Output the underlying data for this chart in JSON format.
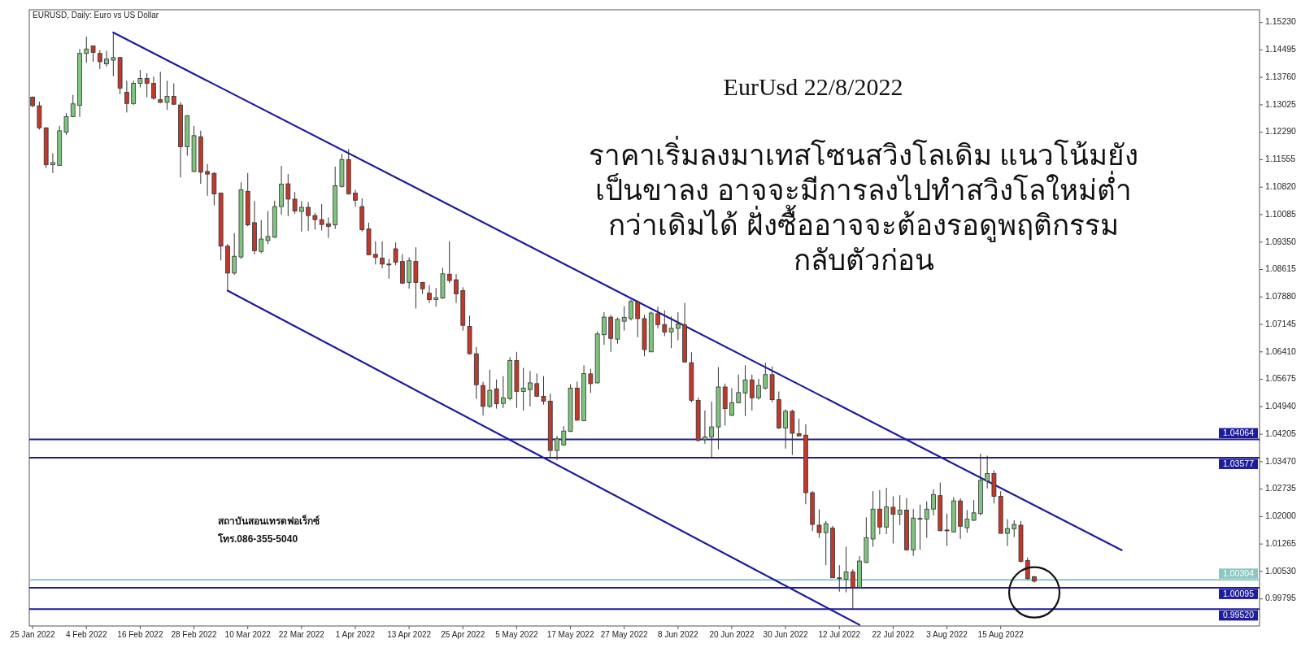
{
  "chart_data": {
    "type": "candlestick",
    "title": "EURUSD, Daily:  Euro vs US Dollar",
    "subtitle": "EurUsd 22/8/2022",
    "annotations": [
      "ราคาเริ่มลงมาเทสโซนสวิงโลเดิม  แนวโน้มยัง\nเป็นขาลง อาจจะมีการลงไปทำสวิงโลใหม่ต่ำ\nกว่าเดิมได้ ฝั่งซื้ออาจจะต้องรอดูพฤติกรรม\nกลับตัวก่อน",
      "สถาบันสอนเทรดฟอเร็กซ์",
      "โทร.086-355-5040"
    ],
    "categories": [
      "25 Jan 2022",
      null,
      null,
      null,
      null,
      null,
      null,
      null,
      "4 Feb 2022",
      null,
      null,
      null,
      null,
      null,
      null,
      null,
      "16 Feb 2022",
      null,
      null,
      null,
      null,
      null,
      null,
      null,
      "28 Feb 2022",
      null,
      null,
      null,
      null,
      null,
      null,
      null,
      "10 Mar 2022",
      null,
      null,
      null,
      null,
      null,
      null,
      null,
      "22 Mar 2022",
      null,
      null,
      null,
      null,
      null,
      null,
      null,
      "1 Apr 2022",
      null,
      null,
      null,
      null,
      null,
      null,
      null,
      "13 Apr 2022",
      null,
      null,
      null,
      null,
      null,
      null,
      null,
      "25 Apr 2022",
      null,
      null,
      null,
      null,
      null,
      null,
      null,
      "5 May 2022",
      null,
      null,
      null,
      null,
      null,
      null,
      null,
      "17 May 2022",
      null,
      null,
      null,
      null,
      null,
      null,
      null,
      "27 May 2022",
      null,
      null,
      null,
      null,
      null,
      null,
      null,
      "8 Jun 2022",
      null,
      null,
      null,
      null,
      null,
      null,
      null,
      "20 Jun 2022",
      null,
      null,
      null,
      null,
      null,
      null,
      null,
      "30 Jun 2022",
      null,
      null,
      null,
      null,
      null,
      null,
      null,
      "12 Jul 2022",
      null,
      null,
      null,
      null,
      null,
      null,
      null,
      "22 Jul 2022",
      null,
      null,
      null,
      null,
      null,
      null,
      null,
      "3 Aug 2022",
      null,
      null,
      null,
      null,
      null,
      null,
      null,
      "15 Aug 2022",
      null,
      null,
      null,
      null,
      null,
      null,
      null,
      null,
      null,
      null,
      null,
      null,
      null,
      null,
      null,
      null,
      null,
      null,
      null,
      null,
      null,
      null,
      null,
      null,
      null,
      null,
      null,
      null,
      null,
      null,
      null,
      null,
      null,
      null,
      null,
      null,
      null,
      null
    ],
    "ohlc": [
      [
        1.1323,
        1.1325,
        1.1296,
        1.13
      ],
      [
        1.13,
        1.1311,
        1.1236,
        1.1241
      ],
      [
        1.1241,
        1.1242,
        1.1133,
        1.1142
      ],
      [
        1.1142,
        1.1173,
        1.112,
        1.1148
      ],
      [
        1.114,
        1.1246,
        1.1139,
        1.1233
      ],
      [
        1.1229,
        1.128,
        1.1222,
        1.1271
      ],
      [
        1.1271,
        1.1329,
        1.127,
        1.1305
      ],
      [
        1.1301,
        1.1452,
        1.127,
        1.144
      ],
      [
        1.144,
        1.1485,
        1.1415,
        1.1452
      ],
      [
        1.146,
        1.1461,
        1.1418,
        1.1443
      ],
      [
        1.144,
        1.1449,
        1.1398,
        1.1418
      ],
      [
        1.1412,
        1.1447,
        1.1405,
        1.1425
      ],
      [
        1.1422,
        1.1496,
        1.1379,
        1.1429
      ],
      [
        1.1429,
        1.1431,
        1.1331,
        1.1347
      ],
      [
        1.1336,
        1.1367,
        1.1282,
        1.1306
      ],
      [
        1.1306,
        1.1367,
        1.1302,
        1.136
      ],
      [
        1.136,
        1.1396,
        1.1349,
        1.1373
      ],
      [
        1.1373,
        1.1387,
        1.1323,
        1.136
      ],
      [
        1.136,
        1.1378,
        1.1316,
        1.132
      ],
      [
        1.1316,
        1.1391,
        1.1307,
        1.1309
      ],
      [
        1.1309,
        1.1367,
        1.1289,
        1.1325
      ],
      [
        1.1325,
        1.136,
        1.1302,
        1.1304
      ],
      [
        1.1302,
        1.1309,
        1.1108,
        1.119
      ],
      [
        1.119,
        1.1275,
        1.1166,
        1.1273
      ],
      [
        1.1124,
        1.1246,
        1.1122,
        1.122
      ],
      [
        1.1217,
        1.1233,
        1.1091,
        1.1122
      ],
      [
        1.1124,
        1.1144,
        1.1059,
        1.1117
      ],
      [
        1.1119,
        1.1122,
        1.1033,
        1.1064
      ],
      [
        1.1066,
        1.1068,
        1.0886,
        1.0924
      ],
      [
        1.0924,
        1.093,
        1.0805,
        1.0852
      ],
      [
        1.0852,
        1.0959,
        1.0847,
        1.0897
      ],
      [
        1.0895,
        1.1095,
        1.089,
        1.1075
      ],
      [
        1.1071,
        1.112,
        1.0977,
        1.0981
      ],
      [
        1.0987,
        1.1045,
        1.0902,
        1.0912
      ],
      [
        1.091,
        1.0994,
        1.0905,
        1.0943
      ],
      [
        1.0939,
        1.1018,
        1.0929,
        1.095
      ],
      [
        1.0948,
        1.1046,
        1.0946,
        1.103
      ],
      [
        1.103,
        1.1139,
        1.1008,
        1.109
      ],
      [
        1.1091,
        1.1117,
        1.1004,
        1.105
      ],
      [
        1.105,
        1.1069,
        1.1011,
        1.1018
      ],
      [
        1.1017,
        1.1045,
        1.0963,
        1.1028
      ],
      [
        1.1028,
        1.1042,
        1.0965,
        1.1006
      ],
      [
        1.1006,
        1.1013,
        1.0968,
        1.0995
      ],
      [
        1.0995,
        1.1037,
        1.0966,
        1.0982
      ],
      [
        1.0984,
        1.1001,
        1.0946,
        1.0977
      ],
      [
        1.0981,
        1.1137,
        1.097,
        1.1086
      ],
      [
        1.1084,
        1.1171,
        1.1081,
        1.1156
      ],
      [
        1.1156,
        1.1184,
        1.1062,
        1.1064
      ],
      [
        1.1066,
        1.1075,
        1.103,
        1.1047
      ],
      [
        1.103,
        1.1052,
        1.0963,
        1.0968
      ],
      [
        1.097,
        1.0987,
        1.09,
        1.0901
      ],
      [
        1.0902,
        1.0937,
        1.0875,
        1.0894
      ],
      [
        1.0892,
        1.0937,
        1.0865,
        1.0876
      ],
      [
        1.0876,
        1.089,
        1.0837,
        1.0874
      ],
      [
        1.0917,
        1.0934,
        1.0873,
        1.0881
      ],
      [
        1.0883,
        1.0902,
        1.0823,
        1.0825
      ],
      [
        1.0827,
        1.0894,
        1.081,
        1.0885
      ],
      [
        1.0883,
        1.0921,
        1.0757,
        1.0827
      ],
      [
        1.0827,
        1.0828,
        1.0796,
        1.081
      ],
      [
        1.0798,
        1.082,
        1.0772,
        1.0781
      ],
      [
        1.0781,
        1.0812,
        1.0762,
        1.0786
      ],
      [
        1.0785,
        1.0866,
        1.0783,
        1.085
      ],
      [
        1.0849,
        1.0937,
        1.0825,
        1.0832
      ],
      [
        1.0834,
        1.0849,
        1.0772,
        1.0796
      ],
      [
        1.0805,
        1.0814,
        1.0698,
        1.0712
      ],
      [
        1.0709,
        1.0738,
        1.0634,
        1.0636
      ],
      [
        1.0636,
        1.0654,
        1.0515,
        1.0553
      ],
      [
        1.0551,
        1.0561,
        1.0471,
        1.0495
      ],
      [
        1.0495,
        1.0593,
        1.0491,
        1.0538
      ],
      [
        1.0542,
        1.0567,
        1.0489,
        1.0502
      ],
      [
        1.0503,
        1.0576,
        1.0491,
        1.0518
      ],
      [
        1.0516,
        1.0627,
        1.0511,
        1.0618
      ],
      [
        1.0618,
        1.0641,
        1.0491,
        1.0535
      ],
      [
        1.0535,
        1.0598,
        1.0484,
        1.0544
      ],
      [
        1.054,
        1.059,
        1.0495,
        1.0558
      ],
      [
        1.0556,
        1.0583,
        1.052,
        1.0522
      ],
      [
        1.0522,
        1.0576,
        1.05,
        1.0509
      ],
      [
        1.0509,
        1.0529,
        1.0357,
        1.0377
      ],
      [
        1.0377,
        1.0416,
        1.0351,
        1.0408
      ],
      [
        1.0392,
        1.0442,
        1.0389,
        1.0429
      ],
      [
        1.0428,
        1.0554,
        1.0426,
        1.0544
      ],
      [
        1.0544,
        1.0561,
        1.0457,
        1.0458
      ],
      [
        1.0457,
        1.0605,
        1.0455,
        1.0583
      ],
      [
        1.0582,
        1.0596,
        1.0531,
        1.0556
      ],
      [
        1.0558,
        1.0696,
        1.0556,
        1.0689
      ],
      [
        1.0687,
        1.0747,
        1.066,
        1.0734
      ],
      [
        1.0734,
        1.074,
        1.0641,
        1.0677
      ],
      [
        1.0675,
        1.0733,
        1.0663,
        1.0728
      ],
      [
        1.0723,
        1.0763,
        1.0698,
        1.0733
      ],
      [
        1.073,
        1.0781,
        1.0725,
        1.0776
      ],
      [
        1.0774,
        1.0778,
        1.068,
        1.073
      ],
      [
        1.073,
        1.074,
        1.0629,
        1.0647
      ],
      [
        1.0641,
        1.0749,
        1.0641,
        1.0745
      ],
      [
        1.0743,
        1.0762,
        1.0704,
        1.0714
      ],
      [
        1.0714,
        1.0752,
        1.0683,
        1.0694
      ],
      [
        1.0694,
        1.0736,
        1.0651,
        1.0704
      ],
      [
        1.0704,
        1.0747,
        1.0672,
        1.0716
      ],
      [
        1.0714,
        1.0772,
        1.0612,
        1.0614
      ],
      [
        1.0612,
        1.064,
        1.0506,
        1.0511
      ],
      [
        1.0511,
        1.0518,
        1.04,
        1.0404
      ],
      [
        1.0406,
        1.0484,
        1.0395,
        1.0413
      ],
      [
        1.0413,
        1.0508,
        1.0357,
        1.044
      ],
      [
        1.044,
        1.06,
        1.038,
        1.0547
      ],
      [
        1.0547,
        1.0556,
        1.0444,
        1.0489
      ],
      [
        1.0471,
        1.0544,
        1.0469,
        1.0505
      ],
      [
        1.0505,
        1.058,
        1.0503,
        1.0532
      ],
      [
        1.0531,
        1.0605,
        1.0469,
        1.0566
      ],
      [
        1.0566,
        1.058,
        1.0484,
        1.0518
      ],
      [
        1.0518,
        1.0569,
        1.0513,
        1.0551
      ],
      [
        1.0544,
        1.0612,
        1.054,
        1.058
      ],
      [
        1.058,
        1.0602,
        1.0506,
        1.0513
      ],
      [
        1.0513,
        1.0535,
        1.0435,
        1.0437
      ],
      [
        1.0437,
        1.0487,
        1.0382,
        1.0482
      ],
      [
        1.0482,
        1.0486,
        1.0365,
        1.0423
      ],
      [
        1.0422,
        1.0462,
        1.0415,
        1.0416
      ],
      [
        1.0418,
        1.0447,
        1.0233,
        1.0264
      ],
      [
        1.0264,
        1.0268,
        1.0161,
        1.0179
      ],
      [
        1.0177,
        1.0219,
        1.0143,
        1.0157
      ],
      [
        1.0157,
        1.0188,
        1.007,
        1.0181
      ],
      [
        1.0169,
        1.0175,
        1.0036,
        1.0036
      ],
      [
        1.0036,
        1.007,
        0.9999,
        1.0034
      ],
      [
        1.0032,
        1.0119,
        0.9997,
        1.0052
      ],
      [
        1.0052,
        1.0059,
        0.9952,
        1.001
      ],
      [
        1.001,
        1.0094,
        1.0007,
        1.0081
      ],
      [
        1.0077,
        1.0198,
        1.0075,
        1.0143
      ],
      [
        1.014,
        1.0268,
        1.0119,
        1.022
      ],
      [
        1.022,
        1.0271,
        1.0152,
        1.0172
      ],
      [
        1.0172,
        1.0277,
        1.0153,
        1.0226
      ],
      [
        1.0225,
        1.0254,
        1.0128,
        1.0206
      ],
      [
        1.0206,
        1.0257,
        1.0177,
        1.0217
      ],
      [
        1.0217,
        1.0249,
        1.0108,
        1.0111
      ],
      [
        1.0111,
        1.022,
        1.0095,
        1.0196
      ],
      [
        1.0195,
        1.0232,
        1.0111,
        1.0193
      ],
      [
        1.0193,
        1.0241,
        1.0143,
        1.022
      ],
      [
        1.022,
        1.0273,
        1.0203,
        1.0259
      ],
      [
        1.0256,
        1.0291,
        1.0161,
        1.0162
      ],
      [
        1.0164,
        1.0208,
        1.0121,
        1.0162
      ],
      [
        1.0159,
        1.0252,
        1.0157,
        1.0242
      ],
      [
        1.0242,
        1.0249,
        1.014,
        1.0174
      ],
      [
        1.017,
        1.0217,
        1.0157,
        1.0193
      ],
      [
        1.019,
        1.0244,
        1.0188,
        1.021
      ],
      [
        1.0208,
        1.0368,
        1.0203,
        1.0297
      ],
      [
        1.0295,
        1.0363,
        1.0275,
        1.0315
      ],
      [
        1.0315,
        1.0324,
        1.0235,
        1.0254
      ],
      [
        1.0254,
        1.0268,
        1.0155,
        1.0155
      ],
      [
        1.0155,
        1.0193,
        1.0121,
        1.0168
      ],
      [
        1.0167,
        1.019,
        1.0145,
        1.0179
      ],
      [
        1.0177,
        1.0188,
        1.0077,
        1.008
      ],
      [
        1.0082,
        1.009,
        1.003,
        1.0034
      ],
      [
        1.0039,
        1.0041,
        1.0023,
        1.0027
      ],
      null,
      null,
      null,
      null,
      null,
      null,
      null,
      null,
      null,
      null,
      null,
      null,
      null,
      null,
      null,
      null,
      null,
      null,
      null,
      null,
      null,
      null,
      null,
      null,
      null,
      null,
      null,
      null,
      null,
      null,
      null,
      null,
      null
    ],
    "series": [
      {
        "type": "line",
        "values": [
          null,
          null,
          null,
          null,
          null,
          null,
          null,
          null,
          null,
          null,
          null,
          null,
          1.1496,
          null,
          null,
          null,
          null,
          null,
          null,
          null,
          null,
          null,
          null,
          null,
          null,
          null,
          null,
          null,
          null,
          null,
          null,
          null,
          null,
          null,
          null,
          null,
          null,
          null,
          null,
          null,
          null,
          null,
          null,
          null,
          null,
          null,
          null,
          null,
          null,
          null,
          null,
          null,
          null,
          null,
          null,
          null,
          null,
          null,
          null,
          null,
          null,
          null,
          null,
          null,
          null,
          null,
          null,
          null,
          null,
          null,
          null,
          null,
          null,
          null,
          null,
          null,
          null,
          null,
          null,
          null,
          null,
          null,
          null,
          null,
          null,
          null,
          null,
          null,
          null,
          null,
          null,
          null,
          null,
          null,
          null,
          null,
          null,
          null,
          null,
          null,
          null,
          null,
          null,
          null,
          null,
          null,
          null,
          null,
          null,
          null,
          null,
          null,
          null,
          null,
          null,
          null,
          null,
          null,
          null,
          null,
          null,
          null,
          null,
          null,
          null,
          null,
          null,
          null,
          null,
          null,
          null,
          null,
          null,
          null,
          null,
          null,
          null,
          null,
          null,
          null,
          null,
          null,
          null,
          null,
          null,
          null,
          null,
          null,
          null,
          null,
          null,
          null,
          null,
          null,
          null,
          null,
          null,
          null,
          null,
          null,
          null,
          null,
          1.011,
          null,
          null,
          null,
          null,
          null,
          null,
          null,
          null,
          null,
          null,
          null,
          null,
          null,
          null,
          null,
          null,
          null,
          null,
          null,
          null
        ],
        "color": "#1c1c9c"
      },
      {
        "type": "line",
        "values": [
          null,
          null,
          null,
          null,
          null,
          null,
          null,
          null,
          null,
          null,
          null,
          null,
          null,
          null,
          null,
          null,
          null,
          null,
          null,
          null,
          null,
          null,
          null,
          null,
          null,
          null,
          null,
          null,
          null,
          1.0805,
          null,
          null,
          null,
          null,
          null,
          null,
          null,
          null,
          null,
          null,
          null,
          null,
          null,
          null,
          null,
          null,
          null,
          null,
          null,
          null,
          null,
          null,
          null,
          null,
          null,
          null,
          null,
          null,
          null,
          null,
          null,
          null,
          null,
          null,
          null,
          null,
          null,
          null,
          null,
          null,
          null,
          null,
          null,
          null,
          null,
          null,
          null,
          null,
          null,
          null,
          null,
          null,
          null,
          null,
          null,
          null,
          null,
          null,
          null,
          null,
          null,
          null,
          null,
          null,
          null,
          null,
          null,
          null,
          null,
          null,
          null,
          null,
          null,
          null,
          null,
          null,
          null,
          null,
          null,
          null,
          null,
          null,
          null,
          null,
          null,
          null,
          null,
          null,
          null,
          null,
          null,
          null,
          null,
          0.991,
          null,
          null,
          null,
          null,
          null,
          null,
          null,
          null,
          null,
          null,
          null,
          null,
          null,
          null,
          null,
          null,
          null,
          null,
          null,
          null,
          null,
          null,
          null,
          null,
          null,
          null,
          null,
          null,
          null,
          null,
          null,
          null,
          null,
          null,
          null,
          null,
          null,
          null,
          null,
          null,
          null,
          null,
          null,
          null,
          null,
          null,
          null,
          null,
          null,
          null,
          null,
          null,
          null,
          null,
          null,
          null,
          null,
          null,
          null
        ],
        "color": "#1c1c9c"
      }
    ],
    "ylim": [
      0.9907,
      1.1557
    ],
    "yticks": [
      {
        "value": 1.1523,
        "label": "1.15230"
      },
      {
        "value": 1.14495,
        "label": "1.14495"
      },
      {
        "value": 1.1376,
        "label": "1.13760"
      },
      {
        "value": 1.13025,
        "label": "1.13025"
      },
      {
        "value": 1.1229,
        "label": "1.12290"
      },
      {
        "value": 1.11555,
        "label": "1.11555"
      },
      {
        "value": 1.1082,
        "label": "1.10820"
      },
      {
        "value": 1.10085,
        "label": "1.10085"
      },
      {
        "value": 1.0935,
        "label": "1.09350"
      },
      {
        "value": 1.08615,
        "label": "1.08615"
      },
      {
        "value": 1.0788,
        "label": "1.07880"
      },
      {
        "value": 1.07145,
        "label": "1.07145"
      },
      {
        "value": 1.0641,
        "label": "1.06410"
      },
      {
        "value": 1.05675,
        "label": "1.05675"
      },
      {
        "value": 1.0494,
        "label": "1.04940"
      },
      {
        "value": 1.04205,
        "label": "1.04205"
      },
      {
        "value": 1.0347,
        "label": "1.03470"
      },
      {
        "value": 1.02735,
        "label": "1.02735"
      },
      {
        "value": 1.02,
        "label": "1.02000"
      },
      {
        "value": 1.01265,
        "label": "1.01265"
      },
      {
        "value": 1.0053,
        "label": "1.00530"
      },
      {
        "value": 0.99795,
        "label": "0.99795"
      }
    ],
    "ref_lines": [
      {
        "axis": "y",
        "value": 1.04064,
        "label": "1.04064",
        "color": "#1c1c9c"
      },
      {
        "axis": "y",
        "value": 1.03577,
        "label": "1.03577",
        "color": "#1c1c9c"
      },
      {
        "axis": "y",
        "value": 1.00304,
        "label": "1.00304",
        "color": "#8cc8c2"
      },
      {
        "axis": "y",
        "value": 1.00095,
        "label": "1.00095",
        "color": "#1c1c9c"
      },
      {
        "axis": "y",
        "value": 0.9952,
        "label": "0.99520",
        "color": "#1c1c9c"
      }
    ]
  }
}
